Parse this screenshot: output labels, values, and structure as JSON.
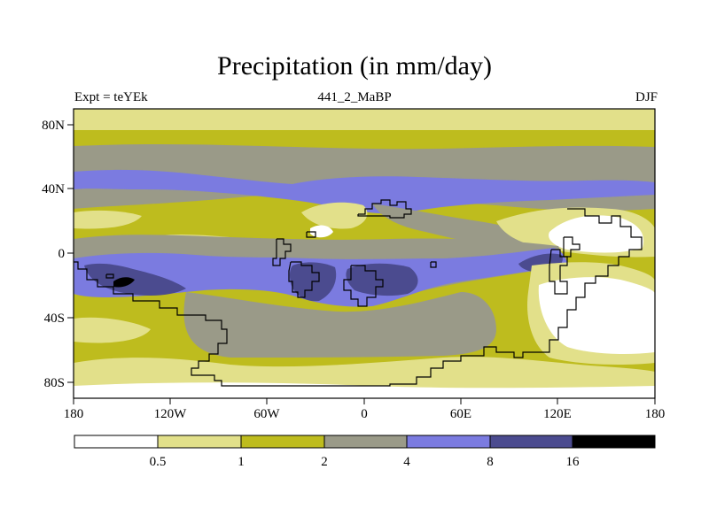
{
  "header": {
    "title": "Precipitation (in mm/day)",
    "left_label": "Expt = teYEk",
    "center_label": "441_2_MaBP",
    "right_label": "DJF"
  },
  "axes": {
    "lon_ticks": [
      "180",
      "120W",
      "60W",
      "0",
      "60E",
      "120E",
      "180"
    ],
    "lat_ticks": [
      "80N",
      "40N",
      "0",
      "40S",
      "80S"
    ]
  },
  "colorbar": {
    "labels": [
      "0.5",
      "1",
      "2",
      "4",
      "8",
      "16"
    ],
    "colors": [
      "#ffffff",
      "#e2e08a",
      "#bebc1e",
      "#9a9a88",
      "#7b7be0",
      "#4b4b8f",
      "#000000"
    ]
  },
  "colors": {
    "lt05": "#ffffff",
    "b05_1": "#e2e08a",
    "b1_2": "#bebc1e",
    "b2_4": "#9a9a88",
    "b4_8": "#7b7be0",
    "b8_16": "#4b4b8f",
    "gt16": "#000000"
  }
}
